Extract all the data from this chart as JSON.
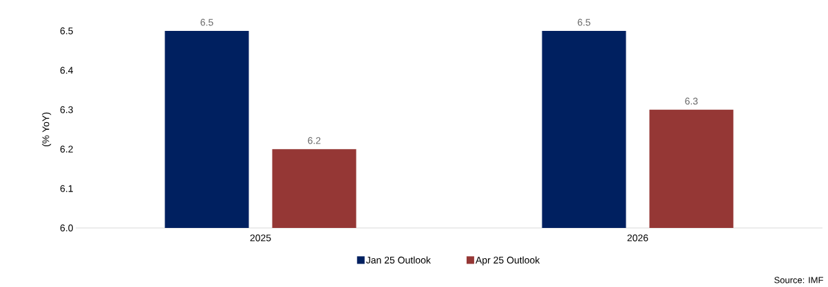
{
  "chart_data": {
    "type": "bar",
    "ylabel": "(% YoY)",
    "categories": [
      "2025",
      "2026"
    ],
    "series": [
      {
        "name": "Jan 25 Outlook",
        "color": "#002060",
        "values": [
          6.5,
          6.5
        ]
      },
      {
        "name": "Apr 25 Outlook",
        "color": "#953735",
        "values": [
          6.2,
          6.3
        ]
      }
    ],
    "ylim": [
      6.0,
      6.5
    ],
    "yticks": [
      {
        "value": 6.0,
        "label": "6.0"
      },
      6.1,
      6.2,
      6.3,
      6.4,
      6.5
    ],
    "data_labels": true,
    "legend": "bottom",
    "annotations": [
      "Source: IMF"
    ]
  }
}
